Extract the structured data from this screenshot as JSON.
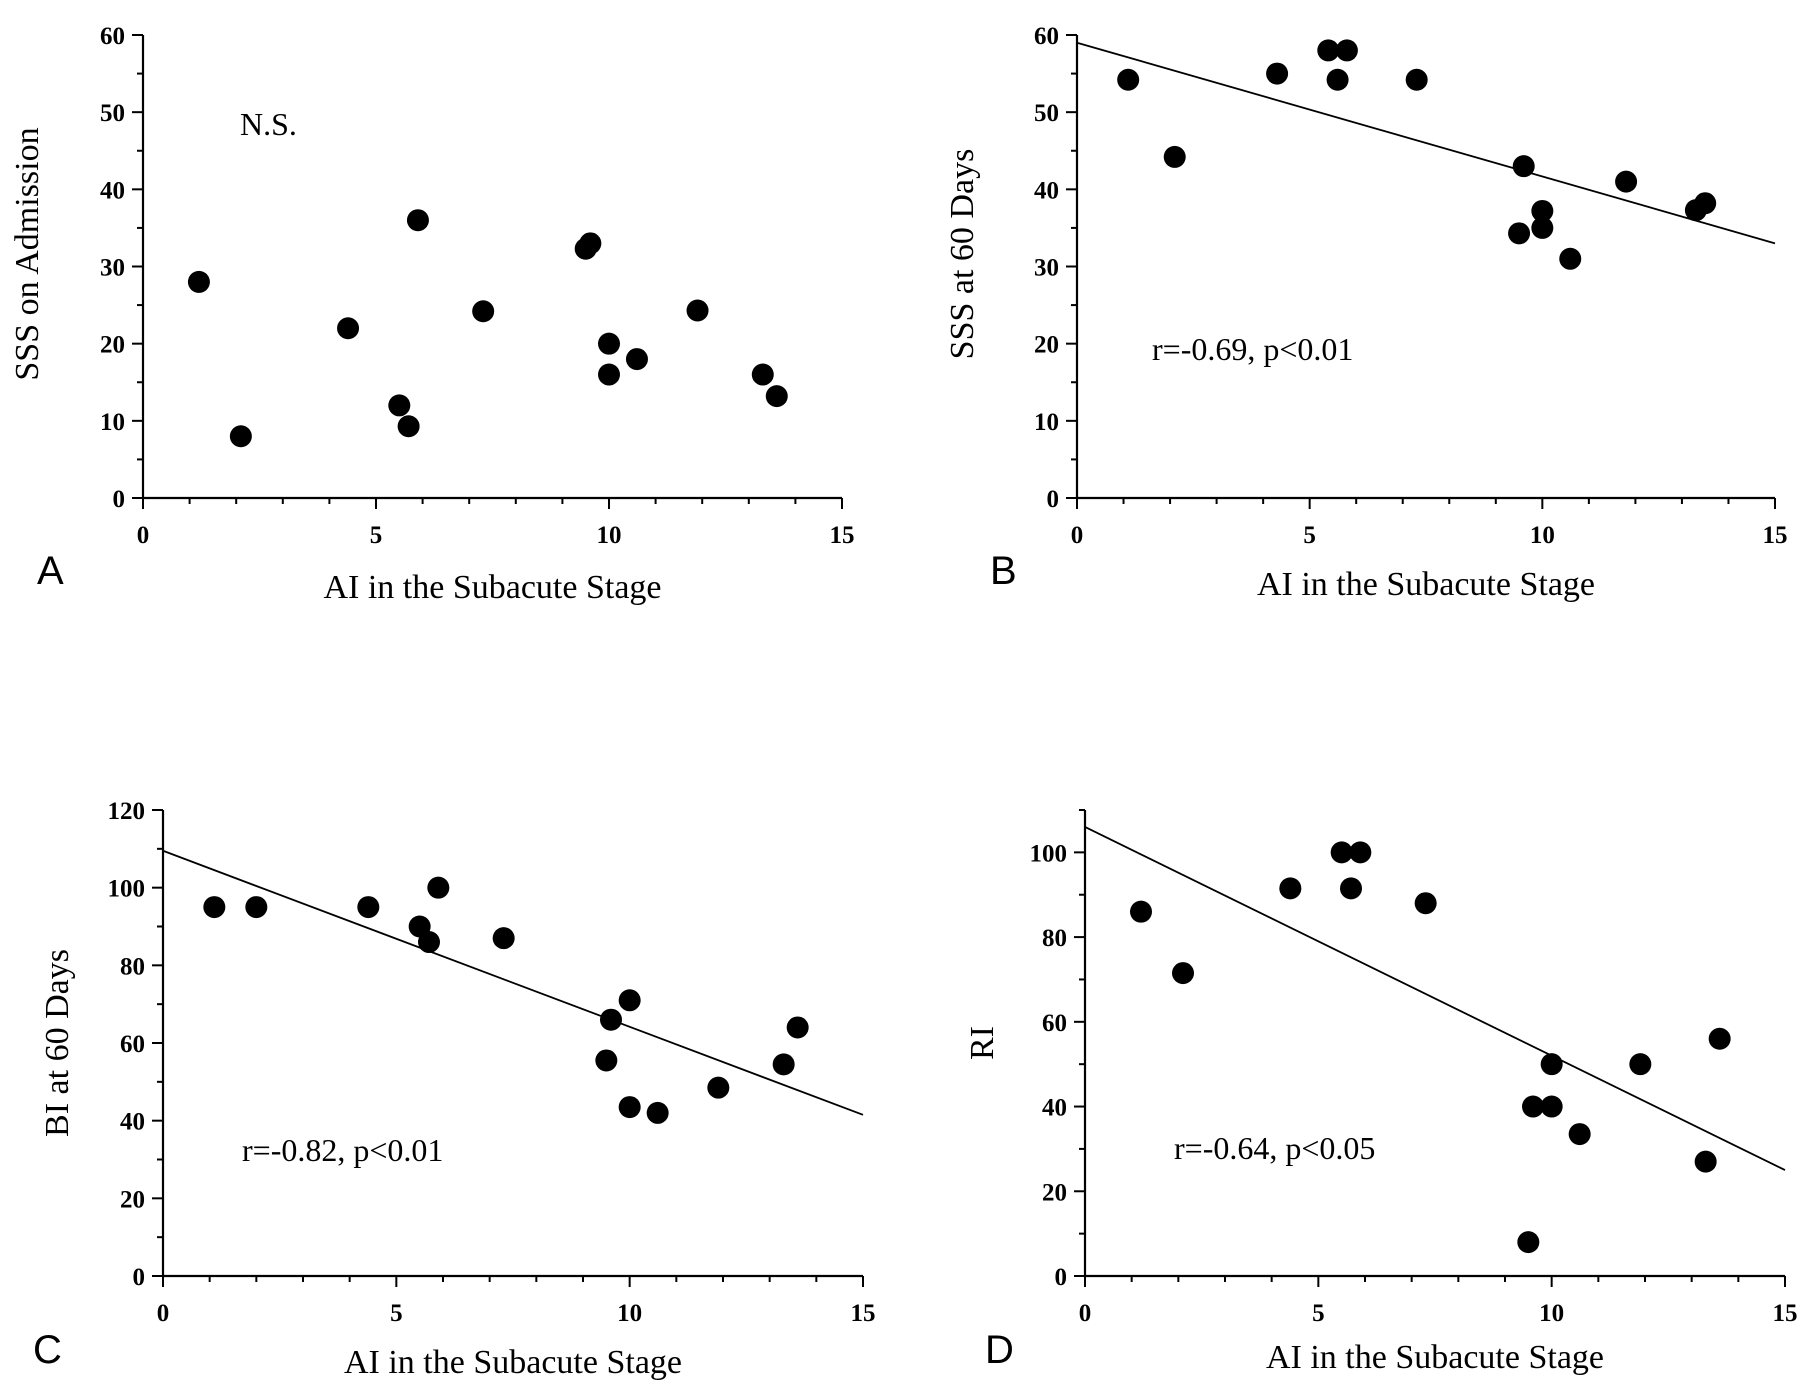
{
  "chart_data": [
    {
      "type": "scatter",
      "panel": "A",
      "xlabel": "AI in the Subacute Stage",
      "ylabel": "SSS on Admission",
      "xlim": [
        0,
        15
      ],
      "ylim": [
        0,
        60
      ],
      "xticks": [
        0,
        5,
        10,
        15
      ],
      "yticks": [
        0,
        10,
        20,
        30,
        40,
        50,
        60
      ],
      "annotation": "N.S.",
      "points": [
        {
          "x": 1.2,
          "y": 28
        },
        {
          "x": 2.1,
          "y": 8
        },
        {
          "x": 4.4,
          "y": 22
        },
        {
          "x": 5.5,
          "y": 12
        },
        {
          "x": 5.7,
          "y": 9.3
        },
        {
          "x": 5.9,
          "y": 36
        },
        {
          "x": 7.3,
          "y": 24.2
        },
        {
          "x": 9.5,
          "y": 32.3
        },
        {
          "x": 9.6,
          "y": 33
        },
        {
          "x": 10.0,
          "y": 20
        },
        {
          "x": 10.0,
          "y": 16
        },
        {
          "x": 10.6,
          "y": 18
        },
        {
          "x": 11.9,
          "y": 24.3
        },
        {
          "x": 13.3,
          "y": 16
        },
        {
          "x": 13.6,
          "y": 13.2
        }
      ],
      "regression": null
    },
    {
      "type": "scatter",
      "panel": "B",
      "xlabel": "AI in the Subacute Stage",
      "ylabel": "SSS at 60 Days",
      "xlim": [
        0,
        15
      ],
      "ylim": [
        0,
        60
      ],
      "xticks": [
        0,
        5,
        10,
        15
      ],
      "yticks": [
        0,
        10,
        20,
        30,
        40,
        50,
        60
      ],
      "annotation": "r=-0.69, p<0.01",
      "points": [
        {
          "x": 1.1,
          "y": 54.2
        },
        {
          "x": 2.1,
          "y": 44.2
        },
        {
          "x": 4.3,
          "y": 55
        },
        {
          "x": 5.4,
          "y": 58
        },
        {
          "x": 5.6,
          "y": 54.2
        },
        {
          "x": 5.8,
          "y": 58
        },
        {
          "x": 7.3,
          "y": 54.2
        },
        {
          "x": 9.5,
          "y": 34.3
        },
        {
          "x": 9.6,
          "y": 43
        },
        {
          "x": 10.0,
          "y": 35
        },
        {
          "x": 10.0,
          "y": 37.2
        },
        {
          "x": 10.6,
          "y": 31
        },
        {
          "x": 11.8,
          "y": 41
        },
        {
          "x": 13.3,
          "y": 37.3
        },
        {
          "x": 13.5,
          "y": 38.2
        }
      ],
      "regression": {
        "x0": 0,
        "y0": 59,
        "x1": 15,
        "y1": 33
      }
    },
    {
      "type": "scatter",
      "panel": "C",
      "xlabel": "AI in the Subacute Stage",
      "ylabel": "BI  at 60 Days",
      "xlim": [
        0,
        15
      ],
      "ylim": [
        0,
        120
      ],
      "xticks": [
        0,
        5,
        10,
        15
      ],
      "yticks": [
        0,
        20,
        40,
        60,
        80,
        100,
        120
      ],
      "annotation": "r=-0.82, p<0.01",
      "points": [
        {
          "x": 1.1,
          "y": 95
        },
        {
          "x": 2.0,
          "y": 95
        },
        {
          "x": 4.4,
          "y": 95
        },
        {
          "x": 5.5,
          "y": 90
        },
        {
          "x": 5.7,
          "y": 86
        },
        {
          "x": 5.9,
          "y": 100
        },
        {
          "x": 7.3,
          "y": 87
        },
        {
          "x": 9.5,
          "y": 55.5
        },
        {
          "x": 9.6,
          "y": 66
        },
        {
          "x": 10.0,
          "y": 71
        },
        {
          "x": 10.0,
          "y": 43.5
        },
        {
          "x": 10.6,
          "y": 42
        },
        {
          "x": 11.9,
          "y": 48.5
        },
        {
          "x": 13.3,
          "y": 54.5
        },
        {
          "x": 13.6,
          "y": 64
        }
      ],
      "regression": {
        "x0": 0,
        "y0": 109.5,
        "x1": 15,
        "y1": 41.5
      }
    },
    {
      "type": "scatter",
      "panel": "D",
      "xlabel": "AI in the Subacute Stage",
      "ylabel": "RI",
      "xlim": [
        0,
        15
      ],
      "ylim": [
        0,
        110
      ],
      "xticks": [
        0,
        5,
        10,
        15
      ],
      "yticks": [
        0,
        20,
        40,
        60,
        80,
        100
      ],
      "annotation": "r=-0.64, p<0.05",
      "points": [
        {
          "x": 1.2,
          "y": 86
        },
        {
          "x": 2.1,
          "y": 71.5
        },
        {
          "x": 4.4,
          "y": 91.5
        },
        {
          "x": 5.5,
          "y": 100
        },
        {
          "x": 5.7,
          "y": 91.5
        },
        {
          "x": 5.9,
          "y": 100
        },
        {
          "x": 7.3,
          "y": 88
        },
        {
          "x": 9.5,
          "y": 8
        },
        {
          "x": 9.6,
          "y": 40
        },
        {
          "x": 10.0,
          "y": 50
        },
        {
          "x": 10.0,
          "y": 40
        },
        {
          "x": 10.6,
          "y": 33.5
        },
        {
          "x": 11.9,
          "y": 50
        },
        {
          "x": 13.3,
          "y": 27
        },
        {
          "x": 13.6,
          "y": 56
        }
      ],
      "regression": {
        "x0": 0,
        "y0": 106,
        "x1": 15,
        "y1": 25
      }
    }
  ]
}
